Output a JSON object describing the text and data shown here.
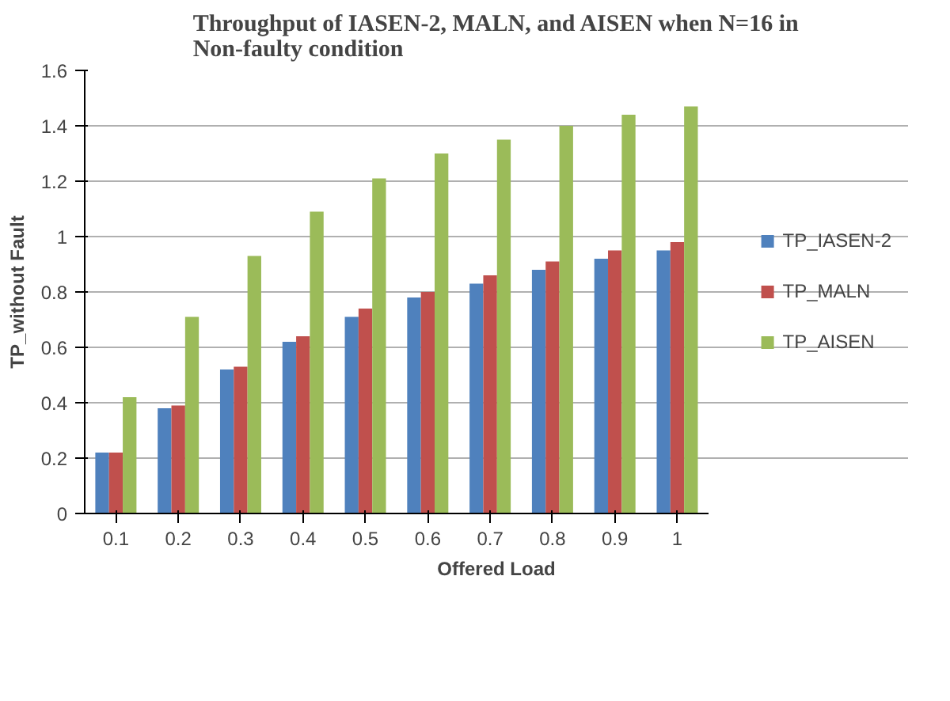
{
  "chart_data": {
    "type": "bar",
    "title": "Throughput of IASEN-2, MALN, and AISEN when N=16 in Non-faulty condition",
    "xlabel": "Offered Load",
    "ylabel": "TP_without Fault",
    "categories": [
      "0.1",
      "0.2",
      "0.3",
      "0.4",
      "0.5",
      "0.6",
      "0.7",
      "0.8",
      "0.9",
      "1"
    ],
    "series": [
      {
        "name": "TP_IASEN-2",
        "color": "#4f81bd",
        "values": [
          0.22,
          0.38,
          0.52,
          0.62,
          0.71,
          0.78,
          0.83,
          0.88,
          0.92,
          0.95
        ]
      },
      {
        "name": "TP_MALN",
        "color": "#c0504d",
        "values": [
          0.22,
          0.39,
          0.53,
          0.64,
          0.74,
          0.8,
          0.86,
          0.91,
          0.95,
          0.98
        ]
      },
      {
        "name": "TP_AISEN",
        "color": "#9bbb59",
        "values": [
          0.42,
          0.71,
          0.93,
          1.09,
          1.21,
          1.3,
          1.35,
          1.4,
          1.44,
          1.47
        ]
      }
    ],
    "ylim": [
      0,
      1.6
    ],
    "yticks": [
      0,
      0.2,
      0.4,
      0.6,
      0.8,
      1,
      1.2,
      1.4,
      1.6
    ],
    "grid": "y",
    "legend": "right"
  }
}
